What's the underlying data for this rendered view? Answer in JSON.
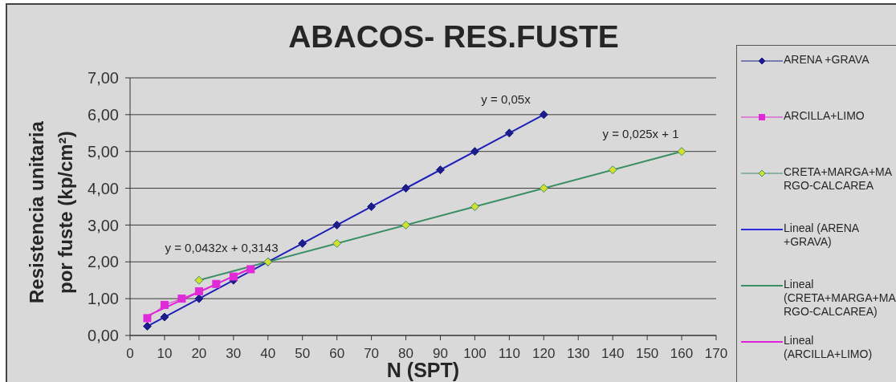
{
  "chart_data": {
    "type": "line",
    "title": "ABACOS- RES.FUSTE",
    "xlabel": "N (SPT)",
    "ylabel": "Resistencia unitaria por fuste (kp/cm²)",
    "series": [
      {
        "name": "ARENA +GRAVA",
        "color": "#1c1c8a",
        "marker": "diamond",
        "x": [
          5,
          10,
          20,
          30,
          40,
          50,
          60,
          70,
          80,
          90,
          100,
          110,
          120
        ],
        "values": [
          0.25,
          0.5,
          1,
          1.5,
          2,
          2.5,
          3,
          3.5,
          4,
          4.5,
          5,
          5.5,
          6
        ]
      },
      {
        "name": "ARCILLA+LIMO",
        "color": "#e02ad8",
        "marker": "square",
        "x": [
          5,
          10,
          15,
          20,
          25,
          30,
          35
        ],
        "values": [
          0.47,
          0.83,
          1.0,
          1.2,
          1.4,
          1.6,
          1.8
        ]
      },
      {
        "name": "CRETA+MARGA+MARGO-CALCAREA",
        "color": "#3c8f68",
        "marker": "diamond",
        "colors": [
          "#d4e02c",
          "#d4e02c",
          "#d4e02c",
          "#d4e02c",
          "#d4e02c",
          "#d4e02c",
          "#d4e02c",
          "#d4e02c"
        ],
        "x": [
          20,
          40,
          60,
          80,
          100,
          120,
          140,
          160
        ],
        "values": [
          1.5,
          2,
          2.5,
          3,
          3.5,
          4,
          4.5,
          5
        ]
      },
      {
        "name": "Lineal (ARENA +GRAVA)",
        "color": "#2b2be0",
        "marker": "none",
        "x": [
          5,
          120
        ],
        "values": [
          0.25,
          6
        ]
      },
      {
        "name": "Lineal (CRETA+MARGA+MARGO-CALCAREA)",
        "color": "#3a8f62",
        "marker": "none",
        "x": [
          20,
          160
        ],
        "values": [
          1.5,
          5
        ]
      },
      {
        "name": "Lineal (ARCILLA+LIMO)",
        "color": "#e020d8",
        "marker": "none",
        "x": [
          5,
          35
        ],
        "values": [
          0.53,
          1.83
        ]
      }
    ],
    "xlim": [
      0,
      170
    ],
    "xticks": [
      0,
      10,
      20,
      30,
      40,
      50,
      60,
      70,
      80,
      90,
      100,
      110,
      120,
      130,
      140,
      150,
      160,
      170
    ],
    "ylim": [
      0,
      7
    ],
    "yticks": [
      {
        "value": 0,
        "label": "0,00"
      },
      {
        "value": 1,
        "label": "1,00"
      },
      {
        "value": 2,
        "label": "2,00"
      },
      {
        "value": 3,
        "label": "3,00"
      },
      {
        "value": 4,
        "label": "4,00"
      },
      {
        "value": 5,
        "label": "5,00"
      },
      {
        "value": 6,
        "label": "6,00"
      },
      {
        "value": 7,
        "label": "7,00"
      }
    ],
    "grid": "y",
    "legend": "right",
    "line_style": "solid",
    "annotations": [
      "y = 0,05x",
      "y = 0,025x + 1",
      "y = 0,0432x + 0,3143"
    ]
  }
}
